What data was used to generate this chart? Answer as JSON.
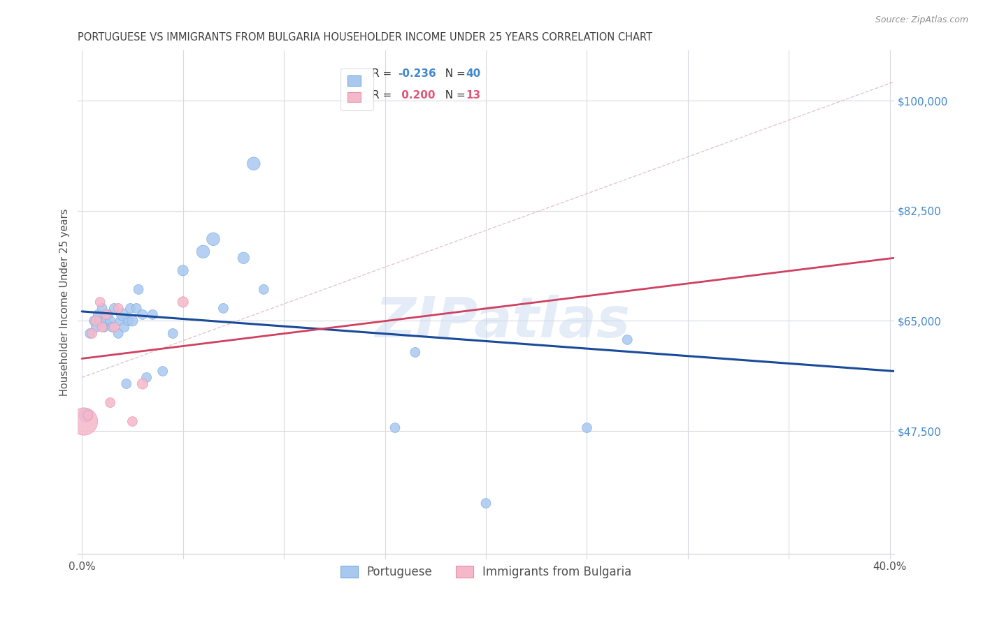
{
  "title": "PORTUGUESE VS IMMIGRANTS FROM BULGARIA HOUSEHOLDER INCOME UNDER 25 YEARS CORRELATION CHART",
  "source": "Source: ZipAtlas.com",
  "ylabel": "Householder Income Under 25 years",
  "watermark": "ZIPatlas",
  "legend_portuguese": "Portuguese",
  "legend_bulgaria": "Immigrants from Bulgaria",
  "R_portuguese": -0.236,
  "N_portuguese": 40,
  "R_bulgaria": 0.2,
  "N_bulgaria": 13,
  "xlim": [
    -0.002,
    0.402
  ],
  "ylim": [
    28000,
    108000
  ],
  "yticks": [
    47500,
    65000,
    82500,
    100000
  ],
  "ytick_labels": [
    "$47,500",
    "$65,000",
    "$82,500",
    "$100,000"
  ],
  "xticks": [
    0.0,
    0.05,
    0.1,
    0.15,
    0.2,
    0.25,
    0.3,
    0.35,
    0.4
  ],
  "xtick_labels": [
    "0.0%",
    "",
    "",
    "",
    "",
    "",
    "",
    "",
    "40.0%"
  ],
  "blue_color": "#a8c8f0",
  "pink_color": "#f5b8cb",
  "blue_scatter_edge": "#7aaad8",
  "pink_scatter_edge": "#e890a8",
  "blue_line_color": "#1a4a9a",
  "pink_line_color": "#d04060",
  "dashed_line_color": "#dbb8c0",
  "grid_color": "#d8dae0",
  "title_color": "#404040",
  "axis_label_color": "#505050",
  "ytick_color": "#4488cc",
  "source_color": "#909090",
  "legend_R_blue": "#4488cc",
  "legend_R_pink": "#e05878",
  "legend_N_color": "#222222",
  "portuguese_x": [
    0.002,
    0.004,
    0.006,
    0.007,
    0.008,
    0.009,
    0.01,
    0.011,
    0.012,
    0.013,
    0.014,
    0.015,
    0.016,
    0.018,
    0.019,
    0.02,
    0.021,
    0.022,
    0.023,
    0.024,
    0.025,
    0.027,
    0.028,
    0.03,
    0.032,
    0.035,
    0.04,
    0.045,
    0.05,
    0.06,
    0.065,
    0.07,
    0.08,
    0.085,
    0.09,
    0.155,
    0.165,
    0.2,
    0.25,
    0.27
  ],
  "portuguese_y": [
    50000,
    63000,
    65000,
    64000,
    66000,
    65000,
    67000,
    64000,
    65000,
    66000,
    65000,
    64000,
    67000,
    63000,
    65000,
    66000,
    64000,
    55000,
    65000,
    67000,
    65000,
    67000,
    70000,
    66000,
    56000,
    66000,
    57000,
    63000,
    73000,
    76000,
    78000,
    67000,
    75000,
    90000,
    70000,
    48000,
    60000,
    36000,
    48000,
    62000
  ],
  "portuguese_size": [
    200,
    100,
    100,
    100,
    100,
    100,
    100,
    100,
    100,
    100,
    100,
    100,
    100,
    100,
    100,
    150,
    100,
    100,
    100,
    100,
    120,
    100,
    100,
    100,
    100,
    100,
    100,
    100,
    120,
    180,
    180,
    100,
    140,
    180,
    100,
    100,
    100,
    100,
    100,
    100
  ],
  "portuguese_size2": [
    600,
    100,
    100,
    100,
    100,
    100,
    100,
    100,
    100,
    100,
    100,
    100,
    100,
    100,
    100,
    150,
    100,
    100,
    100,
    100,
    120,
    100,
    100,
    100,
    100,
    100,
    100,
    100,
    120,
    180,
    180,
    100,
    140,
    180,
    100,
    100,
    100,
    100,
    100,
    100
  ],
  "bulgaria_x": [
    0.001,
    0.003,
    0.005,
    0.007,
    0.009,
    0.01,
    0.012,
    0.014,
    0.016,
    0.018,
    0.025,
    0.03,
    0.05
  ],
  "bulgaria_y": [
    49000,
    50000,
    63000,
    65000,
    68000,
    64000,
    66000,
    52000,
    64000,
    67000,
    49000,
    55000,
    68000
  ],
  "bulgaria_size": [
    800,
    100,
    100,
    120,
    100,
    100,
    100,
    100,
    100,
    100,
    100,
    120,
    120
  ],
  "blue_trendline_x": [
    0.0,
    0.402
  ],
  "blue_trendline_y": [
    66500,
    57000
  ],
  "pink_trendline_x": [
    0.0,
    0.402
  ],
  "pink_trendline_y": [
    59000,
    75000
  ],
  "dashed_line_x": [
    0.0,
    0.402
  ],
  "dashed_line_y": [
    56000,
    103000
  ]
}
